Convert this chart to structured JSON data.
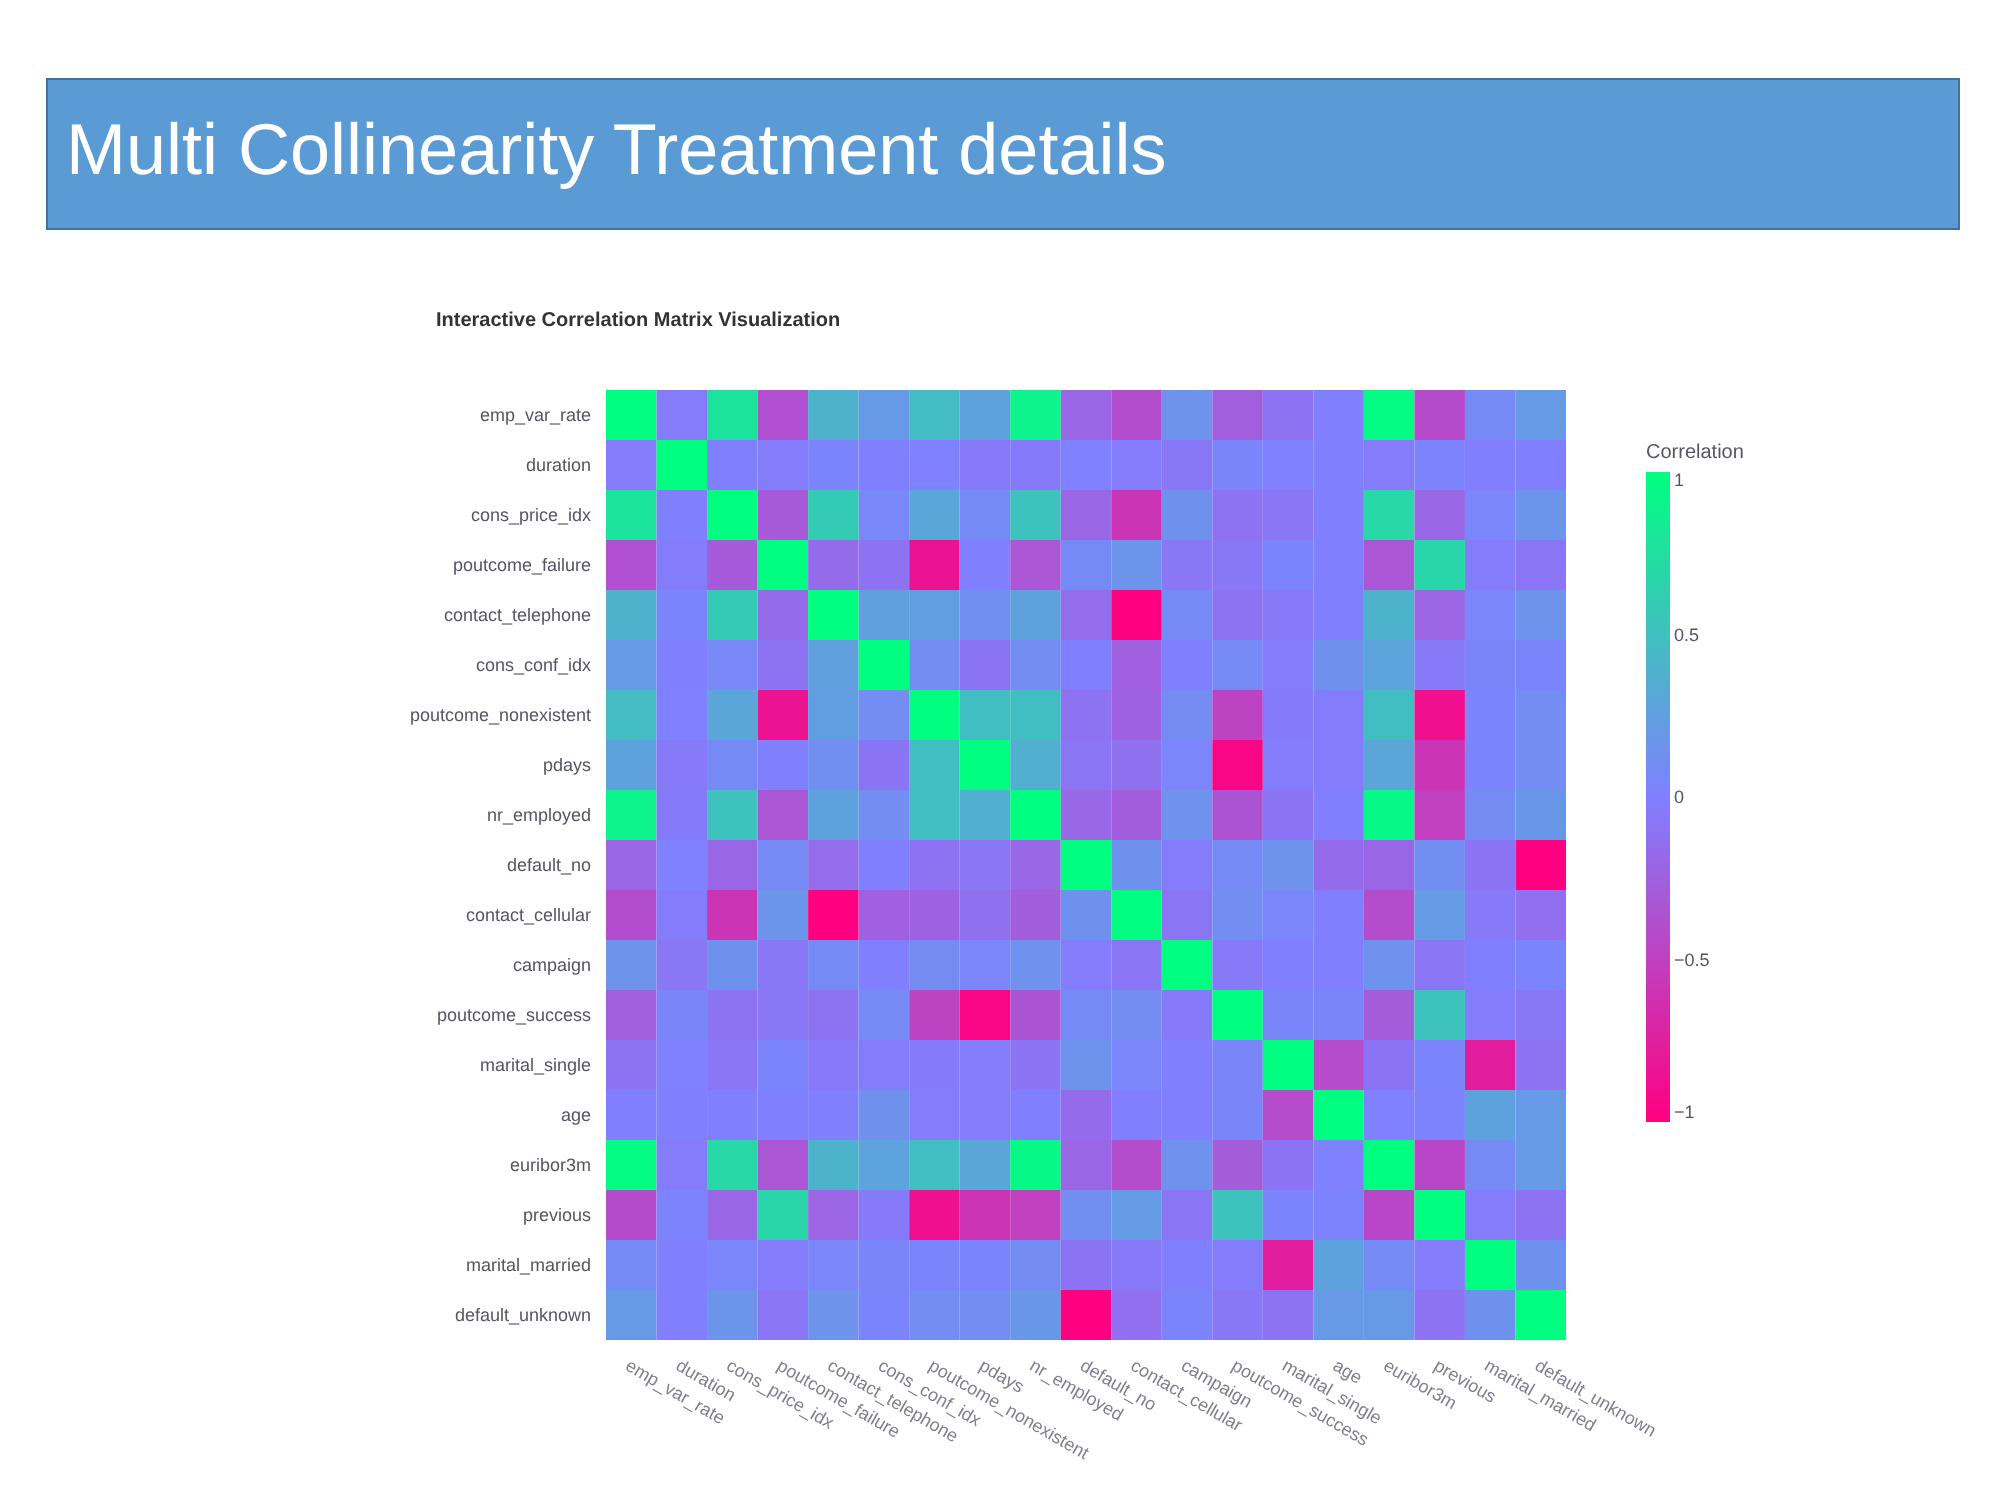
{
  "chart_data": {
    "type": "heatmap",
    "title": "Multi Collinearity Treatment details",
    "subtitle": "Interactive Correlation Matrix Visualization",
    "clabel": "Correlation",
    "categories": [
      "emp_var_rate",
      "duration",
      "cons_price_idx",
      "poutcome_failure",
      "contact_telephone",
      "cons_conf_idx",
      "poutcome_nonexistent",
      "pdays",
      "nr_employed",
      "default_no",
      "contact_cellular",
      "campaign",
      "poutcome_success",
      "marital_single",
      "age",
      "euribor3m",
      "previous",
      "marital_married",
      "default_unknown"
    ],
    "y_categories": [
      "emp_var_rate",
      "duration",
      "cons_price_idx",
      "poutcome_failure",
      "contact_telephone",
      "cons_conf_idx",
      "poutcome_nonexistent",
      "pdays",
      "nr_employed",
      "default_no",
      "contact_cellular",
      "campaign",
      "poutcome_success",
      "marital_single",
      "age",
      "euribor3m",
      "previous",
      "marital_married",
      "default_unknown"
    ],
    "cells": [
      [
        1,
        -0.03,
        0.78,
        -0.38,
        0.39,
        0.2,
        0.47,
        0.27,
        0.91,
        -0.2,
        -0.39,
        0.15,
        -0.26,
        -0.1,
        0.0,
        0.97,
        -0.42,
        0.08,
        0.2
      ],
      [
        -0.03,
        1,
        0.0,
        -0.02,
        0.03,
        0.0,
        0.01,
        -0.05,
        -0.04,
        0.01,
        -0.03,
        -0.07,
        0.04,
        0.01,
        0.0,
        -0.03,
        0.02,
        -0.01,
        -0.01
      ],
      [
        0.78,
        0.0,
        1,
        -0.3,
        0.59,
        0.06,
        0.3,
        0.08,
        0.52,
        -0.2,
        -0.59,
        0.13,
        -0.1,
        -0.08,
        0.0,
        0.69,
        -0.2,
        0.05,
        0.16
      ],
      [
        -0.38,
        -0.02,
        -0.3,
        1,
        -0.16,
        -0.1,
        -0.85,
        0.0,
        -0.33,
        0.08,
        0.16,
        -0.07,
        -0.07,
        0.03,
        0.0,
        -0.33,
        0.68,
        -0.03,
        -0.08
      ],
      [
        0.39,
        0.03,
        0.59,
        -0.16,
        1,
        0.25,
        0.24,
        0.12,
        0.27,
        -0.15,
        -1.0,
        0.08,
        -0.1,
        -0.05,
        0.0,
        0.4,
        -0.21,
        0.05,
        0.15
      ],
      [
        0.2,
        0.0,
        0.06,
        -0.1,
        0.25,
        1,
        0.1,
        -0.09,
        0.1,
        0.0,
        -0.25,
        0.0,
        0.08,
        -0.03,
        0.13,
        0.28,
        -0.05,
        0.04,
        0.03
      ],
      [
        0.47,
        0.01,
        0.3,
        -0.85,
        0.24,
        0.1,
        1,
        0.49,
        0.49,
        -0.1,
        -0.24,
        0.09,
        -0.47,
        -0.04,
        -0.02,
        0.49,
        -0.88,
        0.03,
        0.1
      ],
      [
        0.27,
        -0.05,
        0.08,
        0.0,
        0.12,
        -0.09,
        0.49,
        1,
        0.37,
        -0.08,
        -0.12,
        0.05,
        -0.95,
        -0.03,
        -0.03,
        0.3,
        -0.59,
        0.03,
        0.1
      ],
      [
        0.91,
        -0.04,
        0.52,
        -0.33,
        0.27,
        0.1,
        0.49,
        0.37,
        1,
        -0.19,
        -0.27,
        0.14,
        -0.35,
        -0.09,
        -0.01,
        0.95,
        -0.5,
        0.09,
        0.18
      ],
      [
        -0.2,
        0.01,
        -0.2,
        0.08,
        -0.15,
        0.0,
        -0.1,
        -0.08,
        -0.19,
        1,
        0.13,
        -0.03,
        0.08,
        0.15,
        -0.16,
        -0.2,
        0.11,
        -0.09,
        -1.0
      ],
      [
        -0.39,
        -0.03,
        -0.59,
        0.16,
        -1.0,
        -0.25,
        -0.24,
        -0.12,
        -0.27,
        0.13,
        1,
        -0.08,
        0.1,
        0.05,
        -0.01,
        -0.4,
        0.21,
        -0.05,
        -0.13
      ],
      [
        0.15,
        -0.07,
        0.13,
        -0.07,
        0.08,
        0.0,
        0.09,
        0.05,
        0.14,
        -0.03,
        -0.08,
        1,
        -0.05,
        -0.01,
        0.0,
        0.14,
        -0.08,
        0.0,
        0.03
      ],
      [
        -0.26,
        0.04,
        -0.1,
        -0.07,
        -0.1,
        0.08,
        -0.47,
        -0.95,
        -0.35,
        0.08,
        0.1,
        -0.05,
        1,
        0.04,
        0.04,
        -0.28,
        0.52,
        -0.03,
        -0.07
      ],
      [
        -0.1,
        0.01,
        -0.08,
        0.03,
        -0.05,
        -0.03,
        -0.04,
        -0.03,
        -0.09,
        0.15,
        0.05,
        -0.01,
        0.04,
        1,
        -0.41,
        -0.09,
        0.03,
        -0.77,
        -0.1
      ],
      [
        0.0,
        0.0,
        0.0,
        0.0,
        0.0,
        0.13,
        -0.02,
        -0.03,
        -0.01,
        -0.16,
        -0.01,
        0.0,
        0.04,
        -0.41,
        1,
        0.01,
        0.02,
        0.27,
        0.2
      ],
      [
        0.97,
        -0.03,
        0.69,
        -0.33,
        0.4,
        0.28,
        0.49,
        0.3,
        0.95,
        -0.2,
        -0.4,
        0.14,
        -0.28,
        -0.09,
        0.01,
        1,
        -0.45,
        0.08,
        0.2
      ],
      [
        -0.42,
        0.02,
        -0.2,
        0.68,
        -0.21,
        -0.05,
        -0.88,
        -0.59,
        -0.5,
        0.11,
        0.21,
        -0.08,
        0.52,
        0.03,
        0.02,
        -0.45,
        1,
        -0.03,
        -0.1
      ],
      [
        0.08,
        -0.01,
        0.05,
        -0.03,
        0.05,
        0.04,
        0.03,
        0.03,
        0.09,
        -0.09,
        -0.05,
        0.0,
        -0.03,
        -0.77,
        0.27,
        0.08,
        -0.03,
        1,
        0.13
      ],
      [
        0.2,
        -0.01,
        0.16,
        -0.08,
        0.15,
        0.03,
        0.1,
        0.1,
        0.18,
        -1.0,
        -0.13,
        0.03,
        -0.07,
        -0.1,
        0.2,
        0.2,
        -0.1,
        0.13,
        1
      ]
    ],
    "clim": [
      -1,
      1
    ],
    "cticks": [
      {
        "value": -1,
        "label": "−1"
      },
      {
        "value": -0.5,
        "label": "−0.5"
      },
      0,
      0.5,
      1
    ],
    "grid": false
  }
}
